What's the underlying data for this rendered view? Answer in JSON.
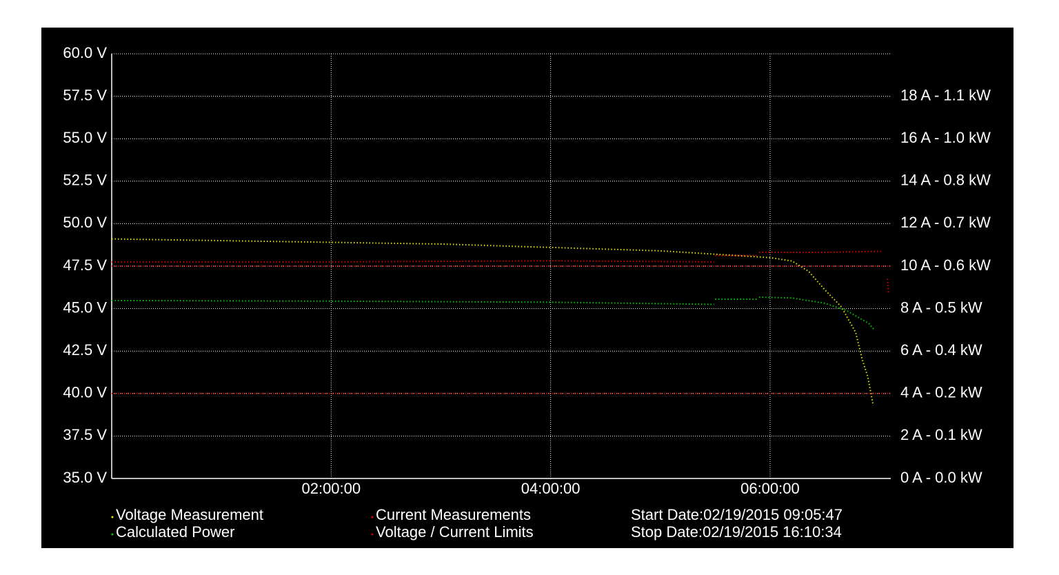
{
  "chart_data": {
    "type": "line",
    "xlim": [
      0,
      7.1
    ],
    "xticks": [
      {
        "value": 2,
        "label": "02:00:00"
      },
      {
        "value": 4,
        "label": "04:00:00"
      },
      {
        "value": 6,
        "label": "06:00:00"
      }
    ],
    "ylim": [
      35,
      60
    ],
    "yticks": [
      {
        "value": 35,
        "label": "35.0 V"
      },
      {
        "value": 37.5,
        "label": "37.5 V"
      },
      {
        "value": 40,
        "label": "40.0 V"
      },
      {
        "value": 42.5,
        "label": "42.5 V"
      },
      {
        "value": 45,
        "label": "45.0 V"
      },
      {
        "value": 47.5,
        "label": "47.5 V"
      },
      {
        "value": 50,
        "label": "50.0 V"
      },
      {
        "value": 52.5,
        "label": "52.5 V"
      },
      {
        "value": 55,
        "label": "55.0 V"
      },
      {
        "value": 57.5,
        "label": "57.5 V"
      },
      {
        "value": 60,
        "label": "60.0 V"
      }
    ],
    "y2lim": [
      0,
      20
    ],
    "y2ticks": [
      {
        "value": 0,
        "label": "0 A - 0.0 kW"
      },
      {
        "value": 2,
        "label": "2 A - 0.1 kW"
      },
      {
        "value": 4,
        "label": "4 A - 0.2 kW"
      },
      {
        "value": 6,
        "label": "6 A - 0.4 kW"
      },
      {
        "value": 8,
        "label": "8 A - 0.5 kW"
      },
      {
        "value": 10,
        "label": "10 A - 0.6 kW"
      },
      {
        "value": 12,
        "label": "12 A - 0.7 kW"
      },
      {
        "value": 14,
        "label": "14 A - 0.8 kW"
      },
      {
        "value": 16,
        "label": "16 A - 1.0 kW"
      },
      {
        "value": 18,
        "label": "18 A - 1.1 kW"
      }
    ],
    "grid": true,
    "series": [
      {
        "name": "Voltage Measurement",
        "color": "#e6e600",
        "x": [
          0,
          1,
          2,
          3,
          4,
          5,
          5.5,
          6,
          6.2,
          6.35,
          6.5,
          6.65,
          6.78,
          6.84,
          6.89,
          6.94
        ],
        "values": [
          49.1,
          49.0,
          48.9,
          48.8,
          48.6,
          48.4,
          48.2,
          48.0,
          47.8,
          47.2,
          46.1,
          45.1,
          43.6,
          42.0,
          41.0,
          39.3
        ]
      },
      {
        "name": "Calculated Power",
        "color": "#00cc00",
        "axis": "y2",
        "x": [
          0,
          2,
          4,
          5.49,
          5.5,
          5.5,
          5.88,
          5.9,
          5.9,
          6.2,
          6.5,
          6.7,
          6.9,
          6.95
        ],
        "values": [
          8.38,
          8.35,
          8.3,
          8.2,
          null,
          8.44,
          8.44,
          null,
          8.54,
          8.5,
          8.25,
          7.9,
          7.3,
          7.0
        ]
      },
      {
        "name": "Current Measurements",
        "color": "#e00000",
        "axis": "y2",
        "x": [
          0,
          2,
          4,
          5.49,
          5.5,
          5.5,
          5.88,
          5.9,
          5.9,
          6.5,
          7.02,
          7.05,
          7.07,
          7.08
        ],
        "values": [
          10.2,
          10.2,
          10.25,
          10.2,
          null,
          10.5,
          10.5,
          null,
          10.65,
          10.65,
          10.7,
          null,
          9.4,
          8.7
        ]
      },
      {
        "name": "Voltage / Current Limits",
        "color": "#cc0000",
        "x": [
          0,
          7.1,
          7.1,
          0,
          7.1
        ],
        "values": [
          47.5,
          47.5,
          null,
          40,
          40
        ]
      }
    ],
    "start_date": "Start Date:02/19/2015 09:05:47",
    "stop_date": "Stop Date:02/19/2015 16:10:34"
  }
}
